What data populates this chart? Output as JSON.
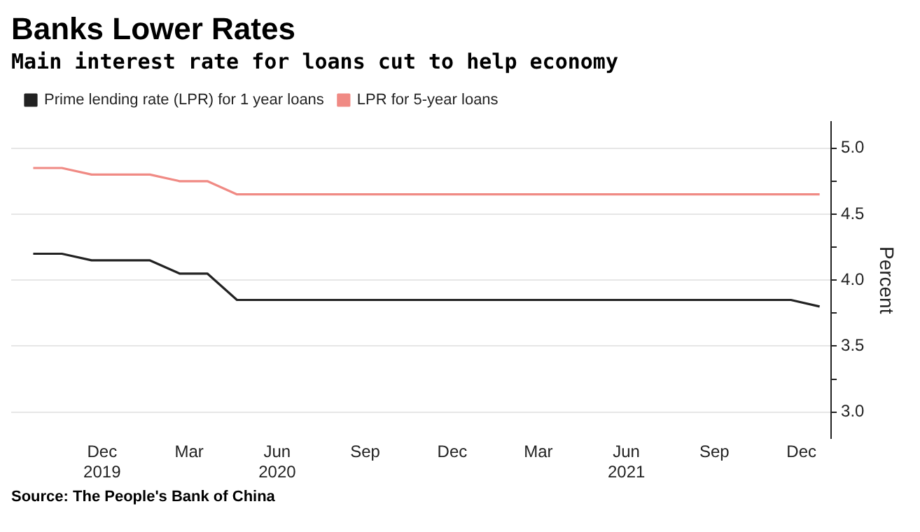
{
  "chart_data": {
    "type": "line",
    "title": "Banks Lower Rates",
    "subtitle": "Main interest rate for loans cut to help economy",
    "ylabel": "Percent",
    "annotations": [
      "Source: The People's Bank of China"
    ],
    "x": [
      "2019-09-20",
      "2019-10-20",
      "2019-11-20",
      "2019-12-20",
      "2020-01-20",
      "2020-02-20",
      "2020-03-20",
      "2020-04-20",
      "2020-05-20",
      "2020-06-20",
      "2020-07-20",
      "2020-08-20",
      "2020-09-20",
      "2020-10-20",
      "2020-11-20",
      "2020-12-20",
      "2021-01-20",
      "2021-02-20",
      "2021-03-20",
      "2021-04-20",
      "2021-05-20",
      "2021-06-20",
      "2021-07-20",
      "2021-08-20",
      "2021-09-20",
      "2021-10-20",
      "2021-11-20",
      "2021-12-20"
    ],
    "series": [
      {
        "name": "Prime lending rate (LPR) for 1 year loans",
        "color": "#222222",
        "values": [
          4.2,
          4.2,
          4.15,
          4.15,
          4.15,
          4.05,
          4.05,
          3.85,
          3.85,
          3.85,
          3.85,
          3.85,
          3.85,
          3.85,
          3.85,
          3.85,
          3.85,
          3.85,
          3.85,
          3.85,
          3.85,
          3.85,
          3.85,
          3.85,
          3.85,
          3.85,
          3.85,
          3.8
        ]
      },
      {
        "name": "LPR for 5-year loans",
        "color": "#f08a84",
        "values": [
          4.85,
          4.85,
          4.8,
          4.8,
          4.8,
          4.75,
          4.75,
          4.65,
          4.65,
          4.65,
          4.65,
          4.65,
          4.65,
          4.65,
          4.65,
          4.65,
          4.65,
          4.65,
          4.65,
          4.65,
          4.65,
          4.65,
          4.65,
          4.65,
          4.65,
          4.65,
          4.65,
          4.65
        ]
      }
    ],
    "xlim": [
      "2019-08-28",
      "2022-01-01"
    ],
    "xticks": [
      {
        "value": "2019-12-01",
        "label": "Dec\n2019"
      },
      {
        "value": "2020-03-01",
        "label": "Mar"
      },
      {
        "value": "2020-06-01",
        "label": "Jun\n2020"
      },
      {
        "value": "2020-09-01",
        "label": "Sep"
      },
      {
        "value": "2020-12-01",
        "label": "Dec"
      },
      {
        "value": "2021-03-01",
        "label": "Mar"
      },
      {
        "value": "2021-06-01",
        "label": "Jun\n2021"
      },
      {
        "value": "2021-09-01",
        "label": "Sep"
      },
      {
        "value": "2021-12-01",
        "label": "Dec"
      }
    ],
    "ylim": [
      2.8,
      5.2
    ],
    "yticks": [
      {
        "value": 3.0,
        "label": "3.0"
      },
      {
        "value": 3.25,
        "label": null
      },
      {
        "value": 3.5,
        "label": "3.5"
      },
      {
        "value": 3.75,
        "label": null
      },
      {
        "value": 4.0,
        "label": "4.0"
      },
      {
        "value": 4.25,
        "label": null
      },
      {
        "value": 4.5,
        "label": "4.5"
      },
      {
        "value": 4.75,
        "label": null
      },
      {
        "value": 5.0,
        "label": "5.0"
      }
    ],
    "grid": "y",
    "legend": "top left"
  }
}
